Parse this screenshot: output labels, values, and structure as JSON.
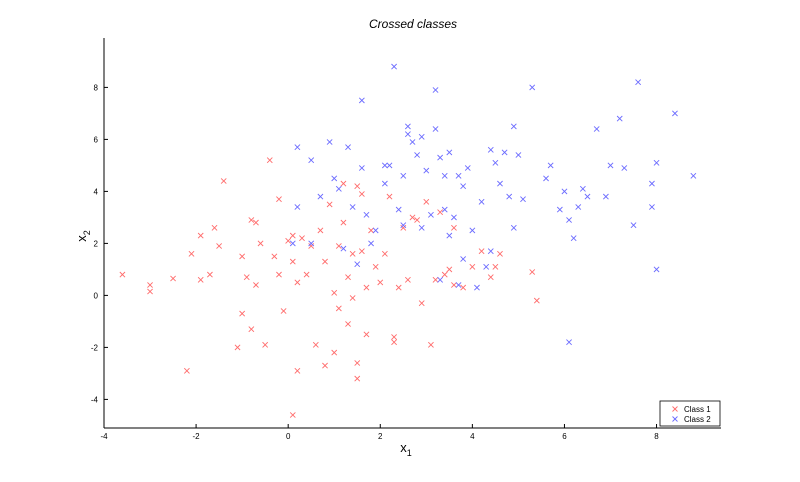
{
  "chart_data": {
    "type": "scatter",
    "title": "Crossed classes",
    "xlabel": "x",
    "xlabel_sub": "1",
    "ylabel": "x",
    "ylabel_sub": "2",
    "xlim": [
      -4,
      9.4
    ],
    "ylim": [
      -5.1,
      9.9
    ],
    "xticks": [
      -4,
      -2,
      0,
      2,
      4,
      6,
      8
    ],
    "yticks": [
      -4,
      -2,
      0,
      2,
      4,
      6,
      8
    ],
    "grid": false,
    "legend_placement": "bottom-right",
    "marker": "×",
    "series": [
      {
        "name": "Class 1",
        "color": "#ff6b6b",
        "points": [
          [
            -3.6,
            0.8
          ],
          [
            -3.0,
            0.4
          ],
          [
            -3.0,
            0.15
          ],
          [
            -2.5,
            0.65
          ],
          [
            -2.2,
            -2.9
          ],
          [
            -2.1,
            1.6
          ],
          [
            -1.9,
            2.3
          ],
          [
            -1.9,
            0.6
          ],
          [
            -1.7,
            0.8
          ],
          [
            -1.6,
            2.6
          ],
          [
            -1.5,
            1.9
          ],
          [
            -1.4,
            4.4
          ],
          [
            -1.1,
            -2.0
          ],
          [
            -1.0,
            1.5
          ],
          [
            -1.0,
            -0.7
          ],
          [
            -0.9,
            0.7
          ],
          [
            -0.8,
            2.9
          ],
          [
            -0.8,
            -1.3
          ],
          [
            -0.7,
            2.8
          ],
          [
            -0.7,
            0.4
          ],
          [
            -0.6,
            2.0
          ],
          [
            -0.5,
            -1.9
          ],
          [
            -0.4,
            5.2
          ],
          [
            -0.3,
            1.5
          ],
          [
            -0.2,
            3.7
          ],
          [
            -0.2,
            0.8
          ],
          [
            -0.1,
            -0.6
          ],
          [
            0.0,
            2.1
          ],
          [
            0.1,
            2.3
          ],
          [
            0.1,
            1.3
          ],
          [
            0.2,
            -2.9
          ],
          [
            0.2,
            0.5
          ],
          [
            0.3,
            2.2
          ],
          [
            0.4,
            0.8
          ],
          [
            0.5,
            1.9
          ],
          [
            0.6,
            -1.9
          ],
          [
            0.7,
            2.5
          ],
          [
            0.8,
            1.3
          ],
          [
            0.8,
            -2.7
          ],
          [
            0.9,
            3.5
          ],
          [
            1.0,
            0.1
          ],
          [
            1.0,
            -2.2
          ],
          [
            1.1,
            1.9
          ],
          [
            1.1,
            -0.5
          ],
          [
            1.2,
            4.3
          ],
          [
            1.2,
            2.8
          ],
          [
            1.3,
            0.7
          ],
          [
            1.3,
            -1.1
          ],
          [
            1.4,
            1.6
          ],
          [
            1.4,
            -0.1
          ],
          [
            1.5,
            4.2
          ],
          [
            1.5,
            -2.6
          ],
          [
            1.5,
            -3.2
          ],
          [
            1.6,
            3.9
          ],
          [
            1.6,
            1.7
          ],
          [
            1.7,
            0.3
          ],
          [
            1.7,
            -1.5
          ],
          [
            1.8,
            2.5
          ],
          [
            1.9,
            1.1
          ],
          [
            2.0,
            0.5
          ],
          [
            2.1,
            1.6
          ],
          [
            2.2,
            3.8
          ],
          [
            2.3,
            -1.6
          ],
          [
            2.3,
            -1.8
          ],
          [
            2.4,
            0.3
          ],
          [
            2.5,
            2.6
          ],
          [
            2.6,
            0.6
          ],
          [
            2.7,
            3.0
          ],
          [
            2.8,
            2.9
          ],
          [
            2.9,
            -0.3
          ],
          [
            3.0,
            3.6
          ],
          [
            3.1,
            -1.9
          ],
          [
            3.2,
            0.6
          ],
          [
            3.3,
            3.2
          ],
          [
            3.4,
            0.8
          ],
          [
            3.5,
            1.0
          ],
          [
            3.6,
            0.4
          ],
          [
            3.6,
            2.6
          ],
          [
            3.8,
            0.3
          ],
          [
            4.0,
            1.1
          ],
          [
            4.2,
            1.7
          ],
          [
            4.4,
            0.7
          ],
          [
            4.5,
            1.1
          ],
          [
            4.6,
            1.6
          ],
          [
            5.3,
            0.9
          ],
          [
            5.4,
            -0.2
          ],
          [
            0.1,
            -4.6
          ]
        ]
      },
      {
        "name": "Class 2",
        "color": "#6b6bff",
        "points": [
          [
            0.1,
            2.0
          ],
          [
            0.2,
            3.4
          ],
          [
            0.2,
            5.7
          ],
          [
            0.5,
            2.0
          ],
          [
            0.5,
            5.2
          ],
          [
            0.7,
            3.8
          ],
          [
            0.9,
            5.9
          ],
          [
            1.0,
            4.5
          ],
          [
            1.1,
            4.1
          ],
          [
            1.2,
            1.8
          ],
          [
            1.3,
            5.7
          ],
          [
            1.4,
            3.4
          ],
          [
            1.5,
            1.2
          ],
          [
            1.6,
            7.5
          ],
          [
            1.6,
            4.9
          ],
          [
            1.7,
            3.1
          ],
          [
            1.8,
            2.0
          ],
          [
            1.9,
            2.5
          ],
          [
            2.1,
            5.0
          ],
          [
            2.1,
            4.3
          ],
          [
            2.2,
            5.0
          ],
          [
            2.3,
            8.8
          ],
          [
            2.4,
            3.3
          ],
          [
            2.5,
            2.7
          ],
          [
            2.5,
            4.6
          ],
          [
            2.6,
            6.5
          ],
          [
            2.6,
            6.2
          ],
          [
            2.7,
            5.9
          ],
          [
            2.8,
            5.4
          ],
          [
            2.9,
            6.1
          ],
          [
            3.0,
            4.8
          ],
          [
            3.1,
            3.1
          ],
          [
            3.2,
            7.9
          ],
          [
            3.2,
            6.4
          ],
          [
            3.3,
            5.3
          ],
          [
            3.4,
            3.3
          ],
          [
            3.4,
            4.6
          ],
          [
            3.5,
            5.5
          ],
          [
            3.6,
            3.0
          ],
          [
            3.7,
            4.6
          ],
          [
            3.8,
            4.2
          ],
          [
            3.9,
            4.9
          ],
          [
            4.0,
            2.5
          ],
          [
            4.2,
            3.6
          ],
          [
            4.4,
            5.6
          ],
          [
            4.5,
            5.1
          ],
          [
            4.6,
            4.3
          ],
          [
            4.7,
            5.5
          ],
          [
            4.8,
            3.8
          ],
          [
            4.9,
            6.5
          ],
          [
            5.0,
            5.4
          ],
          [
            5.1,
            3.7
          ],
          [
            5.3,
            8.0
          ],
          [
            5.6,
            4.5
          ],
          [
            5.7,
            5.0
          ],
          [
            5.9,
            3.3
          ],
          [
            6.0,
            4.0
          ],
          [
            6.1,
            2.9
          ],
          [
            6.2,
            2.2
          ],
          [
            6.3,
            3.4
          ],
          [
            6.4,
            4.1
          ],
          [
            6.5,
            3.8
          ],
          [
            6.7,
            6.4
          ],
          [
            6.9,
            3.8
          ],
          [
            7.0,
            5.0
          ],
          [
            7.2,
            6.8
          ],
          [
            7.3,
            4.9
          ],
          [
            7.5,
            2.7
          ],
          [
            7.6,
            8.2
          ],
          [
            7.9,
            4.3
          ],
          [
            7.9,
            3.4
          ],
          [
            8.0,
            5.1
          ],
          [
            8.0,
            1.0
          ],
          [
            8.4,
            7.0
          ],
          [
            8.8,
            4.6
          ],
          [
            6.1,
            -1.8
          ],
          [
            3.3,
            0.6
          ],
          [
            3.8,
            1.4
          ],
          [
            4.3,
            1.1
          ],
          [
            4.9,
            2.6
          ],
          [
            4.1,
            0.3
          ],
          [
            3.7,
            0.4
          ],
          [
            4.4,
            1.7
          ],
          [
            2.9,
            2.6
          ],
          [
            3.5,
            2.3
          ]
        ]
      }
    ]
  }
}
